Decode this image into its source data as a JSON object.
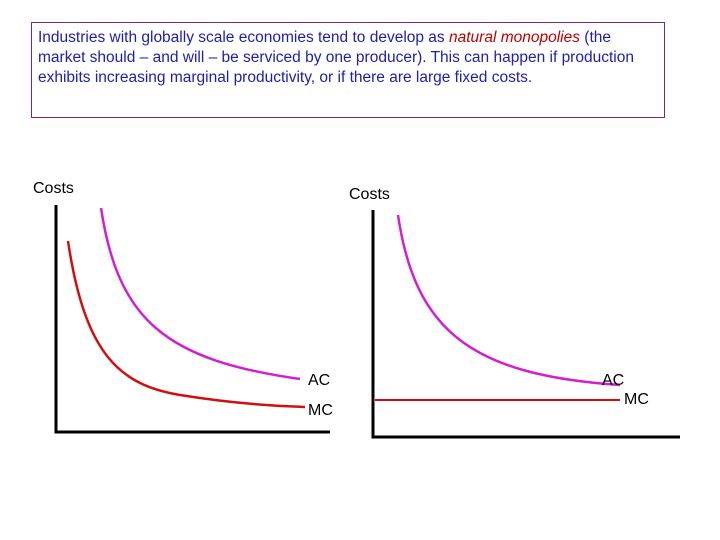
{
  "caption": {
    "part1": "Industries with globally scale economies tend to develop as  ",
    "term1": "natural",
    "term2": "monopolies",
    "part2": " (the market should – and will – be serviced by one producer). This can happen if production exhibits increasing marginal productivity, or if there are large fixed costs."
  },
  "colors": {
    "ac_curve": "#d020d0",
    "mc_curve": "#d01010",
    "axis": "#000000",
    "caption_text": "#2020b0",
    "caption_emphasis": "#c00000",
    "caption_border": "#7a2a6a"
  },
  "left_chart": {
    "y_label": "Costs",
    "ac_label": "AC",
    "mc_label": "MC"
  },
  "right_chart": {
    "y_label": "Costs",
    "ac_label": "AC",
    "mc_label": "MC"
  }
}
